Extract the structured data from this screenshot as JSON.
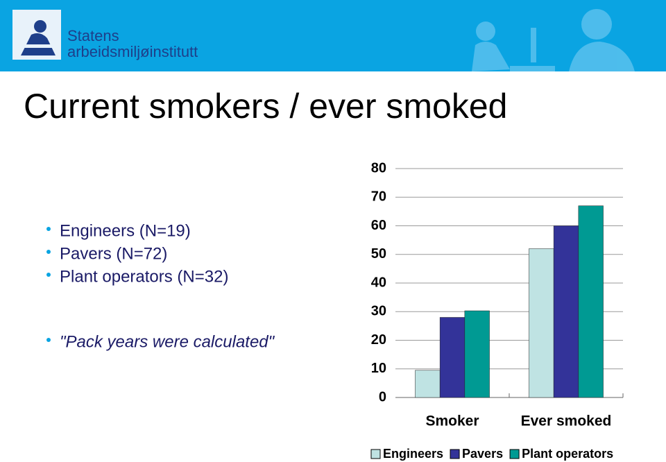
{
  "header": {
    "logo_line1": "Statens",
    "logo_line2": "arbeidsmiljøinstitutt"
  },
  "title": "Current smokers / ever smoked",
  "bullets": [
    "Engineers (N=19)",
    "Pavers (N=72)",
    "Plant operators (N=32)"
  ],
  "note": "\"Pack years were calculated\"",
  "chart_data": {
    "type": "bar",
    "categories": [
      "Smoker",
      "Ever smoked"
    ],
    "series": [
      {
        "name": "Engineers",
        "color": "#bfe3e3",
        "values": [
          9.5,
          52
        ]
      },
      {
        "name": "Pavers",
        "color": "#333399",
        "values": [
          28,
          60
        ]
      },
      {
        "name": "Plant operators",
        "color": "#009a93",
        "values": [
          30.3,
          67
        ]
      }
    ],
    "ylim": [
      0,
      80
    ],
    "yticks": [
      0,
      10,
      20,
      30,
      40,
      50,
      60,
      70,
      80
    ],
    "grid": true,
    "legend": "bottom"
  }
}
